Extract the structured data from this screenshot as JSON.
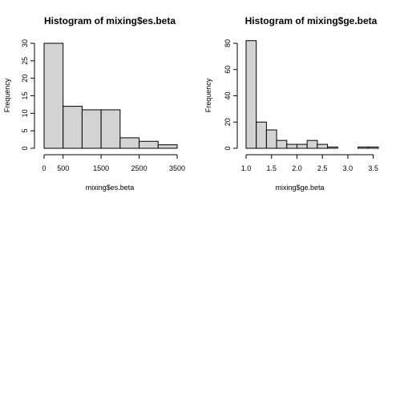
{
  "chart_data": [
    {
      "type": "bar",
      "title": "Histogram of mixing$es.beta",
      "xlabel": "mixing$es.beta",
      "ylabel": "Frequency",
      "bins": [
        {
          "x0": 0,
          "x1": 500,
          "count": 30
        },
        {
          "x0": 500,
          "x1": 1000,
          "count": 12
        },
        {
          "x0": 1000,
          "x1": 1500,
          "count": 11
        },
        {
          "x0": 1500,
          "x1": 2000,
          "count": 11
        },
        {
          "x0": 2000,
          "x1": 2500,
          "count": 3
        },
        {
          "x0": 2500,
          "x1": 3000,
          "count": 2
        },
        {
          "x0": 3000,
          "x1": 3500,
          "count": 1
        }
      ],
      "xlim": [
        0,
        3500
      ],
      "ylim": [
        0,
        30
      ],
      "xticks": [
        "0",
        "500",
        "1500",
        "2500",
        "3500"
      ],
      "xtick_values": [
        0,
        500,
        1500,
        2500,
        3500
      ],
      "yticks": [
        "0",
        "5",
        "10",
        "15",
        "20",
        "25",
        "30"
      ],
      "ytick_values": [
        0,
        5,
        10,
        15,
        20,
        25,
        30
      ],
      "bar_fill": "#d3d3d3",
      "bar_stroke": "#000000",
      "grid": false
    },
    {
      "type": "bar",
      "title": "Histogram of mixing$ge.beta",
      "xlabel": "mixing$ge.beta",
      "ylabel": "Frequency",
      "bins": [
        {
          "x0": 1.0,
          "x1": 1.2,
          "count": 82
        },
        {
          "x0": 1.2,
          "x1": 1.4,
          "count": 20
        },
        {
          "x0": 1.4,
          "x1": 1.6,
          "count": 14
        },
        {
          "x0": 1.6,
          "x1": 1.8,
          "count": 6
        },
        {
          "x0": 1.8,
          "x1": 2.0,
          "count": 3
        },
        {
          "x0": 2.0,
          "x1": 2.2,
          "count": 3
        },
        {
          "x0": 2.2,
          "x1": 2.4,
          "count": 6
        },
        {
          "x0": 2.4,
          "x1": 2.6,
          "count": 3
        },
        {
          "x0": 2.6,
          "x1": 2.8,
          "count": 1
        },
        {
          "x0": 2.8,
          "x1": 3.0,
          "count": 0
        },
        {
          "x0": 3.0,
          "x1": 3.2,
          "count": 0
        },
        {
          "x0": 3.2,
          "x1": 3.4,
          "count": 1
        },
        {
          "x0": 3.4,
          "x1": 3.6,
          "count": 1
        }
      ],
      "xlim": [
        1.0,
        3.6
      ],
      "ylim": [
        0,
        80
      ],
      "xticks": [
        "1.0",
        "1.5",
        "2.0",
        "2.5",
        "3.0",
        "3.5"
      ],
      "xtick_values": [
        1.0,
        1.5,
        2.0,
        2.5,
        3.0,
        3.5
      ],
      "yticks": [
        "0",
        "20",
        "40",
        "60",
        "80"
      ],
      "ytick_values": [
        0,
        20,
        40,
        60,
        80
      ],
      "bar_fill": "#d3d3d3",
      "bar_stroke": "#000000",
      "grid": false
    }
  ]
}
